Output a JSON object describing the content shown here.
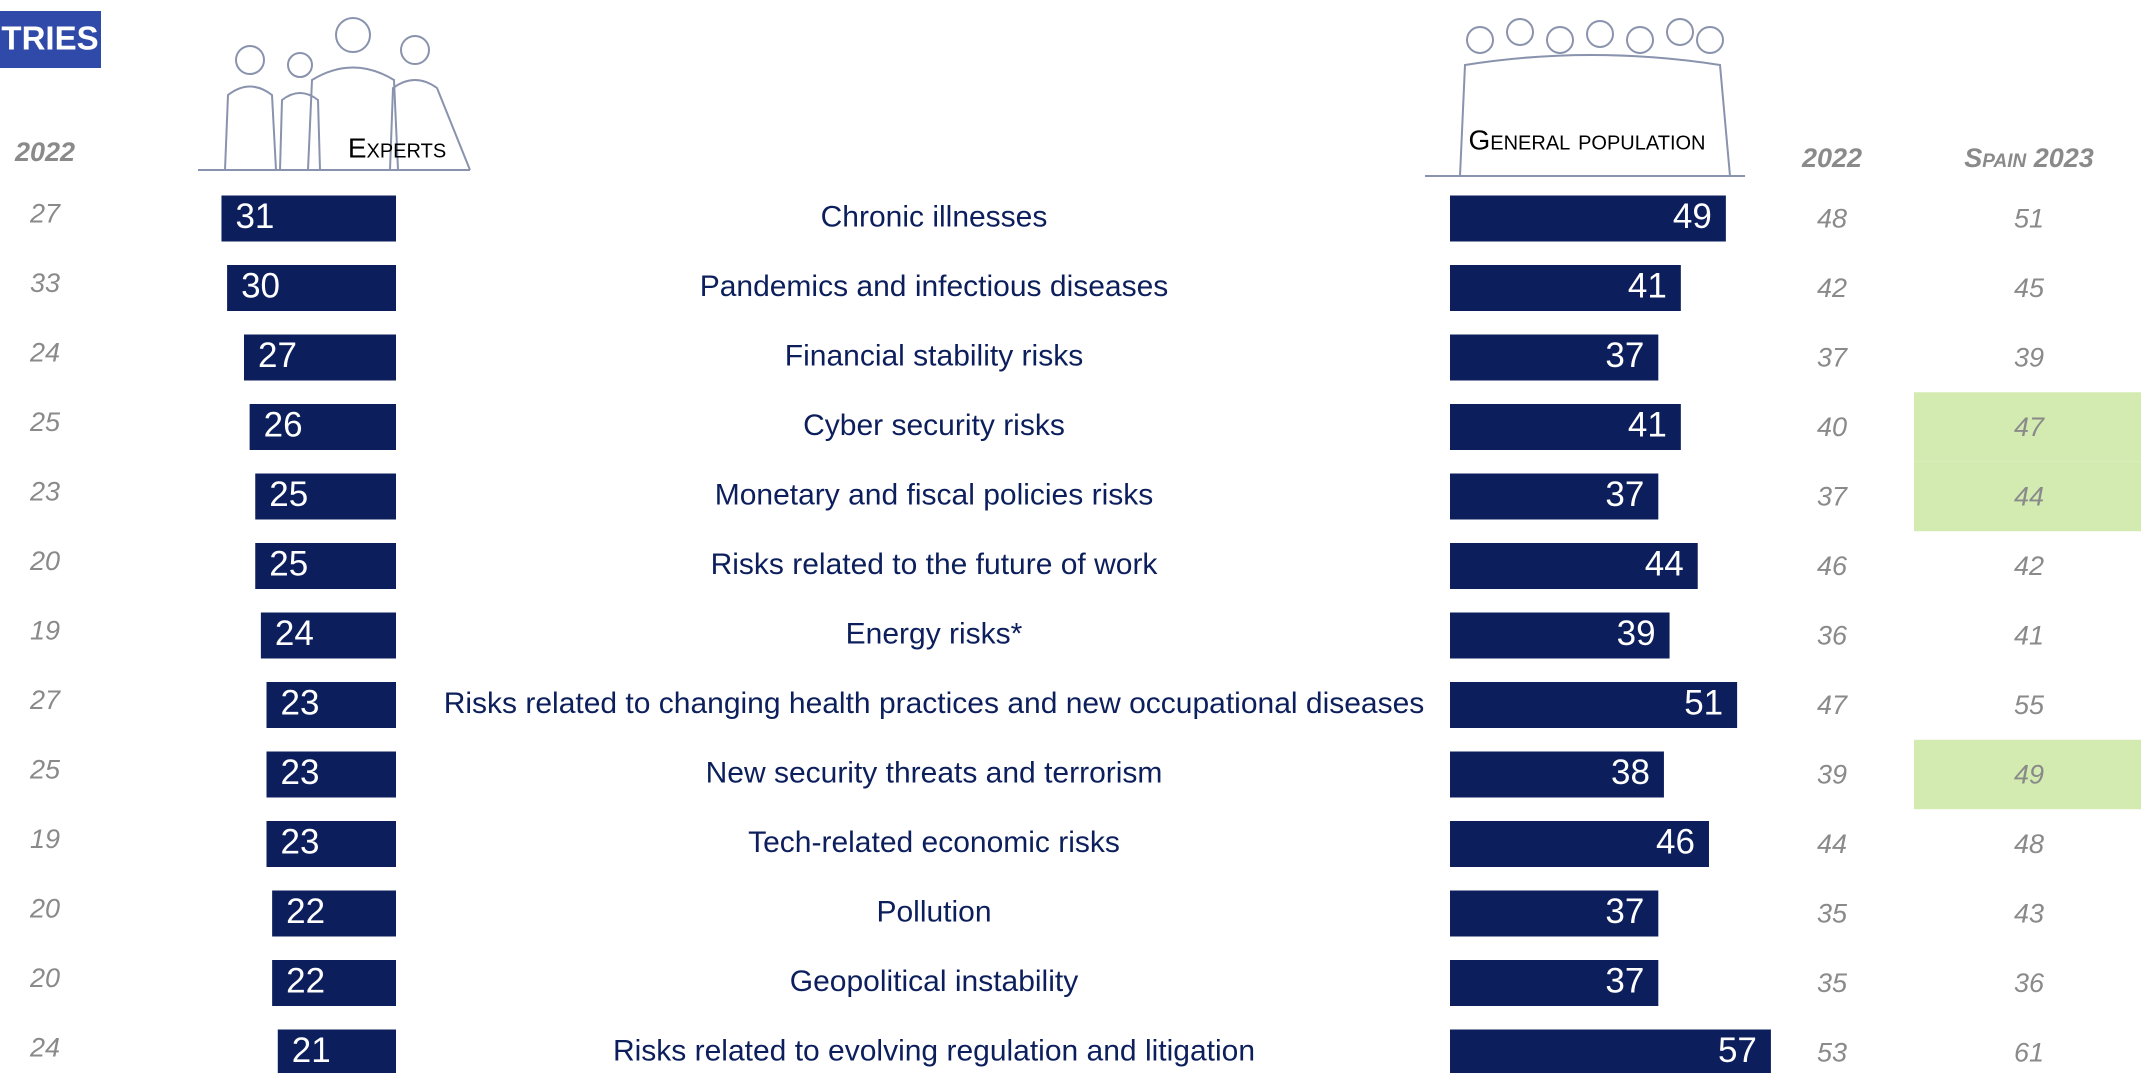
{
  "chart_data": {
    "type": "butterfly",
    "tag": "TRIES",
    "categories": [
      "Chronic illnesses",
      "Pandemics and infectious diseases",
      "Financial stability risks",
      "Cyber security risks",
      "Monetary and fiscal policies risks",
      "Risks related to the future of work",
      "Energy risks*",
      "Risks related to changing health practices and new occupational diseases",
      "New security threats and terrorism",
      "Tech-related economic risks",
      "Pollution",
      "Geopolitical instability",
      "Risks related to evolving regulation and litigation"
    ],
    "series": [
      {
        "name": "Experts",
        "color": "#0c1f5c",
        "values": [
          31,
          30,
          27,
          26,
          25,
          25,
          24,
          23,
          23,
          23,
          22,
          22,
          21
        ]
      },
      {
        "name": "General population",
        "color": "#0c1f5c",
        "values": [
          49,
          41,
          37,
          41,
          37,
          44,
          39,
          51,
          38,
          46,
          37,
          37,
          57
        ]
      }
    ],
    "columns": [
      {
        "name": "2022",
        "values": [
          27,
          33,
          24,
          25,
          23,
          20,
          19,
          27,
          25,
          19,
          20,
          20,
          24
        ]
      },
      {
        "name": "2022",
        "values": [
          48,
          42,
          37,
          40,
          37,
          46,
          36,
          47,
          39,
          44,
          35,
          35,
          53
        ]
      },
      {
        "name": "Spain 2023",
        "values": [
          51,
          45,
          39,
          47,
          44,
          42,
          41,
          55,
          49,
          48,
          43,
          36,
          61
        ],
        "highlight_color": "#d3ebb1",
        "highlighted": [
          false,
          false,
          false,
          true,
          true,
          false,
          false,
          false,
          true,
          false,
          false,
          false,
          false
        ]
      }
    ]
  }
}
